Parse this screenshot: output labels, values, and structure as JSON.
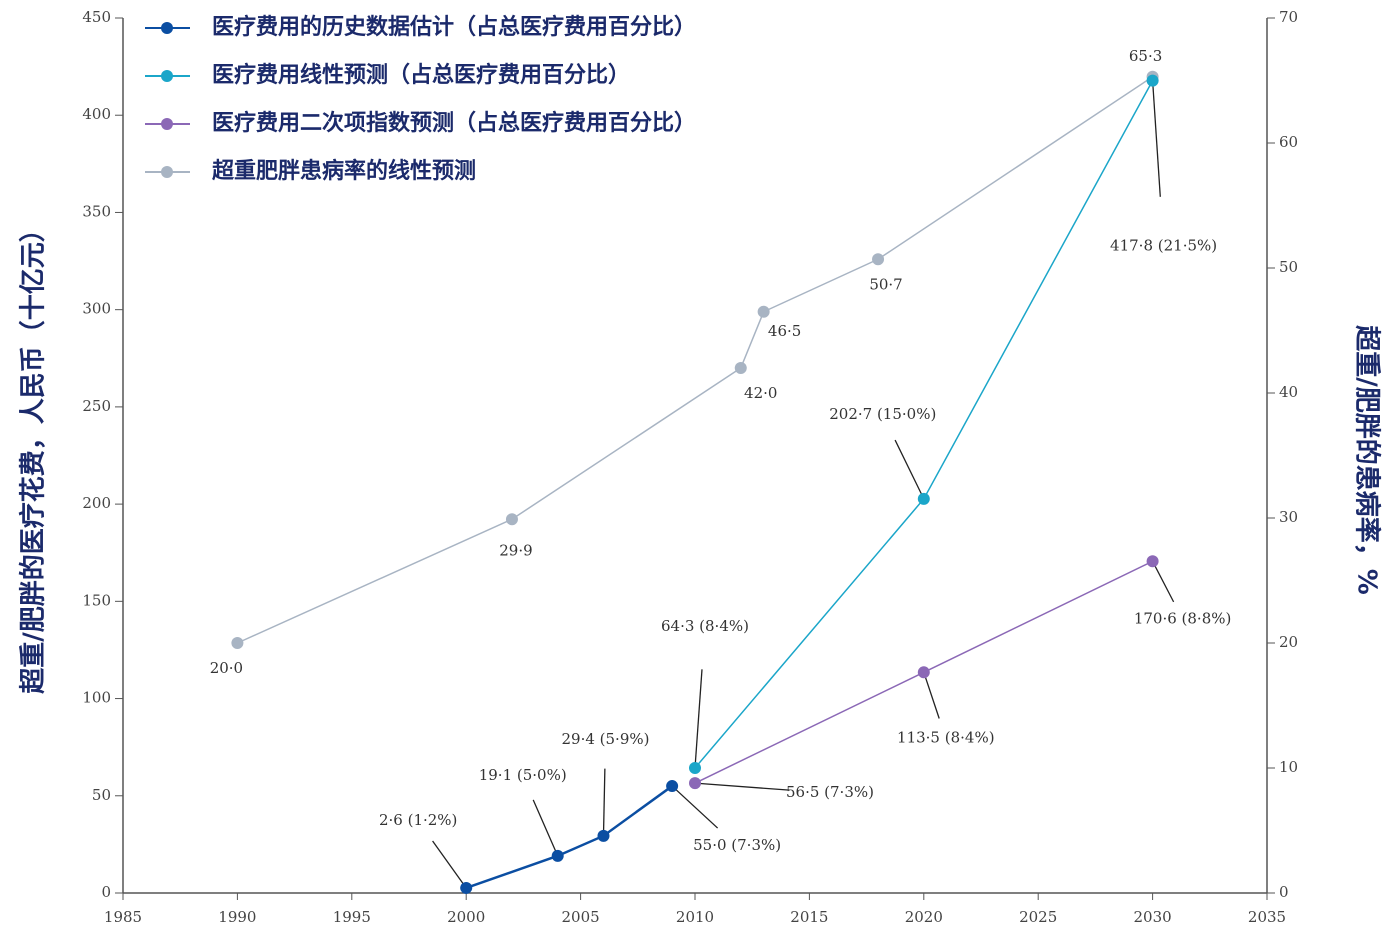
{
  "chart_data": {
    "type": "line",
    "y_label": "超重/肥胖的医疗花费，人民币（十亿元）",
    "y2_label": "超重/肥胖的患病率，%",
    "xlim": [
      1985,
      2035
    ],
    "xticks": [
      1985,
      1990,
      1995,
      2000,
      2005,
      2010,
      2015,
      2020,
      2025,
      2030,
      2035
    ],
    "ylim": [
      0,
      450
    ],
    "yticks": [
      0,
      50,
      100,
      150,
      200,
      250,
      300,
      350,
      400,
      450
    ],
    "y2lim": [
      0,
      70
    ],
    "y2ticks": [
      0,
      10,
      20,
      30,
      40,
      50,
      60,
      70
    ],
    "legend": "upper left",
    "series": [
      {
        "name": "医疗费用的历史数据估计（占总医疗费用百分比）",
        "color": "#0b4ea2",
        "x": [
          2000,
          2004,
          2006,
          2009
        ],
        "values": [
          2.6,
          19.1,
          29.4,
          55.0
        ],
        "value_labels": [
          "2·6 (1·2%)",
          "19·1 (5·0%)",
          "29·4 (5·9%)",
          "55·0 (7·3%)"
        ]
      },
      {
        "name": "医疗费用线性预测（占总医疗费用百分比）",
        "color": "#1ba6c9",
        "x": [
          2010,
          2020,
          2030
        ],
        "values": [
          64.3,
          202.7,
          417.8
        ],
        "value_labels": [
          "64·3 (8·4%)",
          "202·7 (15·0%)",
          "417·8 (21·5%)"
        ]
      },
      {
        "name": "医疗费用二次项指数预测（占总医疗费用百分比）",
        "color": "#8b68b6",
        "x": [
          2010,
          2020,
          2030
        ],
        "values": [
          56.5,
          113.5,
          170.6
        ],
        "value_labels": [
          "56·5 (7·3%)",
          "113·5 (8·4%)",
          "170·6 (8·8%)"
        ]
      },
      {
        "name": "超重肥胖患病率的线性预测",
        "color": "#a8b4c3",
        "axis": "y2",
        "x": [
          1990,
          2002,
          2012,
          2013,
          2018,
          2030
        ],
        "values": [
          20.0,
          29.9,
          42.0,
          46.5,
          50.7,
          65.3
        ],
        "value_labels": [
          "20·0",
          "29·9",
          "42·0",
          "46·5",
          "50·7",
          "65·3"
        ]
      }
    ]
  }
}
